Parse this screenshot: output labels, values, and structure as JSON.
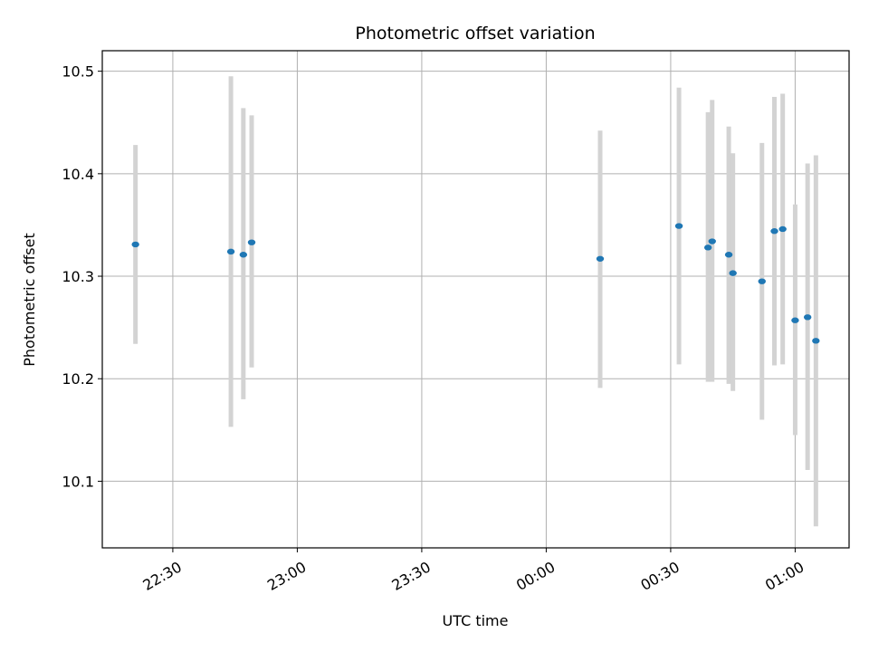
{
  "chart_data": {
    "type": "scatter",
    "title": "Photometric offset variation",
    "xlabel": "UTC time",
    "ylabel": "Photometric offset",
    "x_axis_kind": "time",
    "x_ticks": [
      "22:30",
      "23:00",
      "23:30",
      "00:00",
      "00:30",
      "01:00"
    ],
    "xlim": [
      "22:13",
      "01:13"
    ],
    "ylim": [
      10.035,
      10.52
    ],
    "y_ticks": [
      10.1,
      10.2,
      10.3,
      10.4,
      10.5
    ],
    "grid": true,
    "point_color": "#1f77b4",
    "errorbar_color": "#d3d3d3",
    "points": [
      {
        "x": "22:21",
        "y": 10.331,
        "ylow": 10.234,
        "yhigh": 10.428
      },
      {
        "x": "22:44",
        "y": 10.324,
        "ylow": 10.153,
        "yhigh": 10.495
      },
      {
        "x": "22:47",
        "y": 10.321,
        "ylow": 10.18,
        "yhigh": 10.464
      },
      {
        "x": "22:49",
        "y": 10.333,
        "ylow": 10.211,
        "yhigh": 10.457
      },
      {
        "x": "00:13",
        "y": 10.317,
        "ylow": 10.191,
        "yhigh": 10.442
      },
      {
        "x": "00:32",
        "y": 10.349,
        "ylow": 10.214,
        "yhigh": 10.484
      },
      {
        "x": "00:39",
        "y": 10.328,
        "ylow": 10.197,
        "yhigh": 10.46
      },
      {
        "x": "00:40",
        "y": 10.334,
        "ylow": 10.197,
        "yhigh": 10.472
      },
      {
        "x": "00:44",
        "y": 10.321,
        "ylow": 10.195,
        "yhigh": 10.446
      },
      {
        "x": "00:45",
        "y": 10.303,
        "ylow": 10.188,
        "yhigh": 10.42
      },
      {
        "x": "00:52",
        "y": 10.295,
        "ylow": 10.16,
        "yhigh": 10.43
      },
      {
        "x": "00:55",
        "y": 10.344,
        "ylow": 10.213,
        "yhigh": 10.475
      },
      {
        "x": "00:57",
        "y": 10.346,
        "ylow": 10.214,
        "yhigh": 10.478
      },
      {
        "x": "01:00",
        "y": 10.257,
        "ylow": 10.145,
        "yhigh": 10.37
      },
      {
        "x": "01:03",
        "y": 10.26,
        "ylow": 10.111,
        "yhigh": 10.41
      },
      {
        "x": "01:05",
        "y": 10.237,
        "ylow": 10.056,
        "yhigh": 10.418
      }
    ]
  }
}
